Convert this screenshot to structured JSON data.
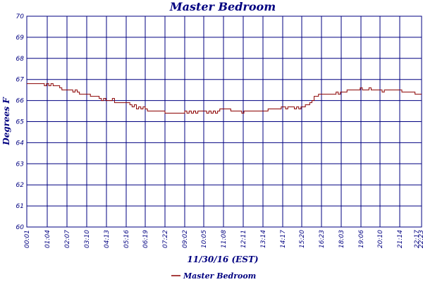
{
  "chart_data": {
    "type": "line",
    "title": "Master Bedroom",
    "xlabel": "11/30/16 (EST)",
    "ylabel": "Degrees F",
    "ylim": [
      60,
      70
    ],
    "yticks": [
      "60",
      "61",
      "62",
      "63",
      "64",
      "65",
      "66",
      "67",
      "68",
      "69",
      "70"
    ],
    "xticks": [
      "00:01",
      "01:04",
      "02:07",
      "03:10",
      "04:13",
      "05:16",
      "06:19",
      "07:22",
      "09:02",
      "10:05",
      "11:08",
      "12:11",
      "13:14",
      "14:17",
      "15:20",
      "16:23",
      "18:03",
      "19:06",
      "20:10",
      "21:14",
      "22:17",
      "22:23"
    ],
    "grid": true,
    "legend": "bottom-center",
    "series": [
      {
        "name": "Master Bedroom",
        "color": "#8b0000",
        "values": [
          66.8,
          66.8,
          66.8,
          66.8,
          66.8,
          66.8,
          66.8,
          66.8,
          66.7,
          66.8,
          66.7,
          66.8,
          66.7,
          66.7,
          66.7,
          66.6,
          66.5,
          66.5,
          66.5,
          66.5,
          66.5,
          66.4,
          66.5,
          66.4,
          66.3,
          66.3,
          66.3,
          66.3,
          66.3,
          66.2,
          66.2,
          66.2,
          66.2,
          66.1,
          66.0,
          66.1,
          66.0,
          66.0,
          66.0,
          66.1,
          65.9,
          65.9,
          65.9,
          65.9,
          65.9,
          65.9,
          65.9,
          65.8,
          65.7,
          65.8,
          65.6,
          65.7,
          65.6,
          65.7,
          65.6,
          65.5,
          65.5,
          65.5,
          65.5,
          65.5,
          65.5,
          65.5,
          65.5,
          65.4,
          65.4,
          65.4,
          65.4,
          65.4,
          65.4,
          65.4,
          65.4,
          65.4,
          65.5,
          65.4,
          65.5,
          65.4,
          65.5,
          65.4,
          65.5,
          65.5,
          65.5,
          65.5,
          65.4,
          65.5,
          65.4,
          65.5,
          65.4,
          65.5,
          65.6,
          65.6,
          65.6,
          65.6,
          65.6,
          65.5,
          65.5,
          65.5,
          65.5,
          65.5,
          65.4,
          65.5,
          65.5,
          65.5,
          65.5,
          65.5,
          65.5,
          65.5,
          65.5,
          65.5,
          65.5,
          65.5,
          65.6,
          65.6,
          65.6,
          65.6,
          65.6,
          65.6,
          65.7,
          65.7,
          65.6,
          65.7,
          65.7,
          65.7,
          65.6,
          65.7,
          65.6,
          65.7,
          65.7,
          65.8,
          65.8,
          65.9,
          66.0,
          66.2,
          66.2,
          66.3,
          66.3,
          66.3,
          66.3,
          66.3,
          66.3,
          66.3,
          66.3,
          66.4,
          66.3,
          66.4,
          66.4,
          66.4,
          66.5,
          66.5,
          66.5,
          66.5,
          66.5,
          66.5,
          66.6,
          66.5,
          66.5,
          66.5,
          66.6,
          66.5,
          66.5,
          66.5,
          66.5,
          66.5,
          66.4,
          66.5,
          66.5,
          66.5,
          66.5,
          66.5,
          66.5,
          66.5,
          66.5,
          66.4,
          66.4,
          66.4,
          66.4,
          66.4,
          66.4,
          66.3,
          66.3,
          66.3
        ]
      }
    ]
  }
}
